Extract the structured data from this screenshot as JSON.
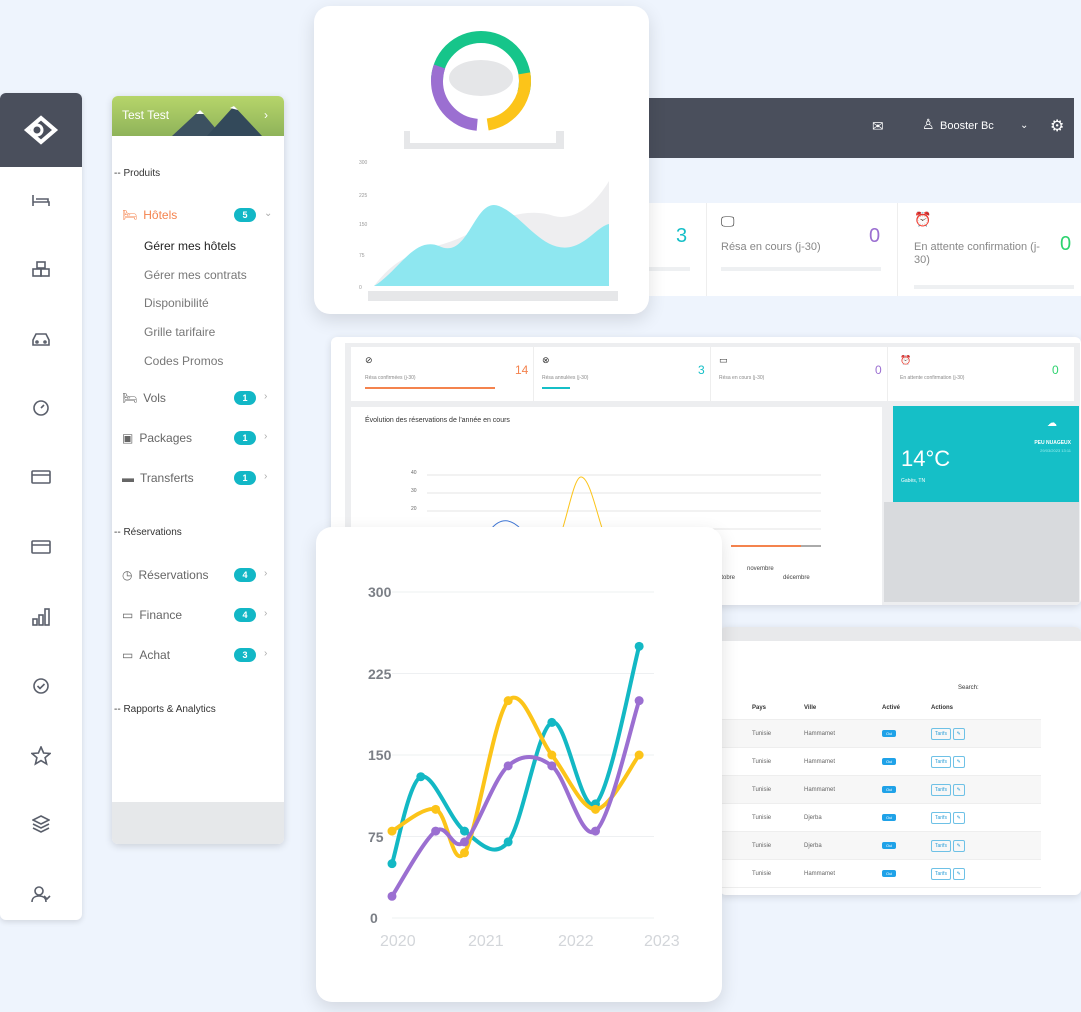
{
  "rail": {
    "icons": [
      "logo-icon",
      "bed-icon",
      "boxes-icon",
      "car-icon",
      "gauge-icon",
      "card-icon",
      "card-icon",
      "bars-icon",
      "check-circle-icon",
      "star-icon",
      "layers-icon",
      "users-icon"
    ]
  },
  "menu": {
    "user": "Test Test",
    "sections": [
      "-- Produits",
      "-- Réservations",
      "-- Rapports & Analytics"
    ],
    "hotels": {
      "label": "Hôtels",
      "badge": "5",
      "subs": [
        "Gérer mes hôtels",
        "Gérer mes contrats",
        "Disponibilité",
        "Grille tarifaire",
        "Codes Promos"
      ]
    },
    "items": [
      {
        "label": "Vols",
        "badge": "1"
      },
      {
        "label": "Packages",
        "badge": "1"
      },
      {
        "label": "Transferts",
        "badge": "1"
      },
      {
        "label": "Réservations",
        "badge": "4"
      },
      {
        "label": "Finance",
        "badge": "4"
      },
      {
        "label": "Achat",
        "badge": "3"
      }
    ]
  },
  "topbar": {
    "user": "Booster Bc"
  },
  "stats_top": [
    {
      "value": "3"
    },
    {
      "label": "Résa en cours (j-30)",
      "value": "0"
    },
    {
      "label": "En attente confirmation (j-30)",
      "value": "0"
    }
  ],
  "stats_mid": [
    {
      "label": "Résa confirmées (j-30)",
      "value": "14"
    },
    {
      "label": "Résa annulées (j-30)",
      "value": "3"
    },
    {
      "label": "Résa en cours (j-30)",
      "value": "0"
    },
    {
      "label": "En attente confirmation (j-30)",
      "value": "0"
    }
  ],
  "evolution": {
    "title": "Évolution des réservations de l'année en cours",
    "yticks": [
      "40",
      "30",
      "20"
    ],
    "xticks": [
      "octobre",
      "novembre",
      "décembre"
    ]
  },
  "weather": {
    "temp": "14°C",
    "desc": "PEU NUAGEUX",
    "date": "29/03/2023 13:11",
    "city": "Gabès, TN"
  },
  "table": {
    "search": "Search:",
    "headers": [
      "Pays",
      "Ville",
      "Activé",
      "Actions"
    ],
    "rows": [
      {
        "pays": "Tunisie",
        "ville": "Hammamet",
        "active": "Oui",
        "action": "Tarifs"
      },
      {
        "pays": "Tunisie",
        "ville": "Hammamet",
        "active": "Oui",
        "action": "Tarifs"
      },
      {
        "pays": "Tunisie",
        "ville": "Hammamet",
        "active": "Oui",
        "action": "Tarifs"
      },
      {
        "pays": "Tunisie",
        "ville": "Djerba",
        "active": "Oui",
        "action": "Tarifs"
      },
      {
        "pays": "Tunisie",
        "ville": "Djerba",
        "active": "Oui",
        "action": "Tarifs"
      },
      {
        "pays": "Tunisie",
        "ville": "Hammamet",
        "active": "Oui",
        "action": "Tarifs"
      }
    ]
  },
  "mini_area": {
    "yticks": [
      "300",
      "225",
      "150",
      "75",
      "0"
    ]
  },
  "colors": {
    "teal": "#13b8c4",
    "yellow": "#fcc419",
    "purple": "#9b6fd1",
    "accent": "#f4834e",
    "dark": "#4a4f5c"
  },
  "chart_data": {
    "type": "line",
    "x": [
      "2020",
      "2021",
      "2022",
      "2023"
    ],
    "ylim": [
      0,
      300
    ],
    "yticks": [
      0,
      75,
      150,
      225,
      300
    ],
    "series": [
      {
        "color": "#13b8c4",
        "points": [
          [
            2020,
            50
          ],
          [
            2020.33,
            130
          ],
          [
            2020.83,
            80
          ],
          [
            2021.33,
            70
          ],
          [
            2021.83,
            180
          ],
          [
            2022.33,
            105
          ],
          [
            2022.83,
            250
          ]
        ]
      },
      {
        "color": "#fcc419",
        "points": [
          [
            2020,
            80
          ],
          [
            2020.5,
            100
          ],
          [
            2020.83,
            60
          ],
          [
            2021.33,
            200
          ],
          [
            2021.83,
            150
          ],
          [
            2022.33,
            100
          ],
          [
            2022.83,
            150
          ]
        ]
      },
      {
        "color": "#9b6fd1",
        "points": [
          [
            2020,
            20
          ],
          [
            2020.5,
            80
          ],
          [
            2020.83,
            70
          ],
          [
            2021.33,
            140
          ],
          [
            2021.83,
            140
          ],
          [
            2022.33,
            80
          ],
          [
            2022.83,
            200
          ]
        ]
      }
    ]
  }
}
